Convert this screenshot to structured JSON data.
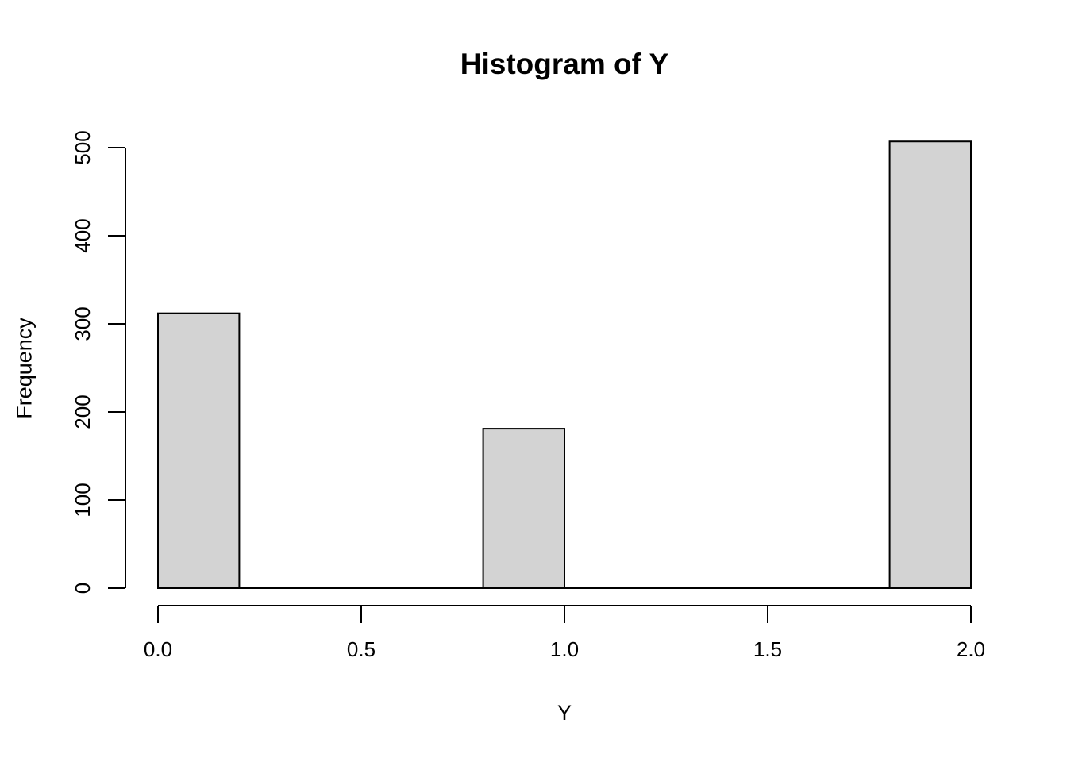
{
  "chart_data": {
    "type": "bar",
    "subtype": "histogram",
    "title": "Histogram of Y",
    "xlabel": "Y",
    "ylabel": "Frequency",
    "bin_edges": [
      0.0,
      0.2,
      0.4,
      0.6,
      0.8,
      1.0,
      1.2,
      1.4,
      1.6,
      1.8,
      2.0
    ],
    "counts": [
      312,
      0,
      0,
      0,
      181,
      0,
      0,
      0,
      0,
      507
    ],
    "x_tick_values": [
      0.0,
      0.5,
      1.0,
      1.5,
      2.0
    ],
    "x_tick_labels": [
      "0.0",
      "0.5",
      "1.0",
      "1.5",
      "2.0"
    ],
    "y_tick_values": [
      0,
      100,
      200,
      300,
      400,
      500
    ],
    "y_tick_labels": [
      "0",
      "100",
      "200",
      "300",
      "400",
      "500"
    ],
    "xlim": [
      0.0,
      2.0
    ],
    "ylim": [
      0,
      500
    ],
    "grid": false,
    "legend_position": "none",
    "bar_fill": "#d3d3d3",
    "bar_stroke": "#000000",
    "axis_color": "#000000",
    "background_color": "#ffffff"
  }
}
